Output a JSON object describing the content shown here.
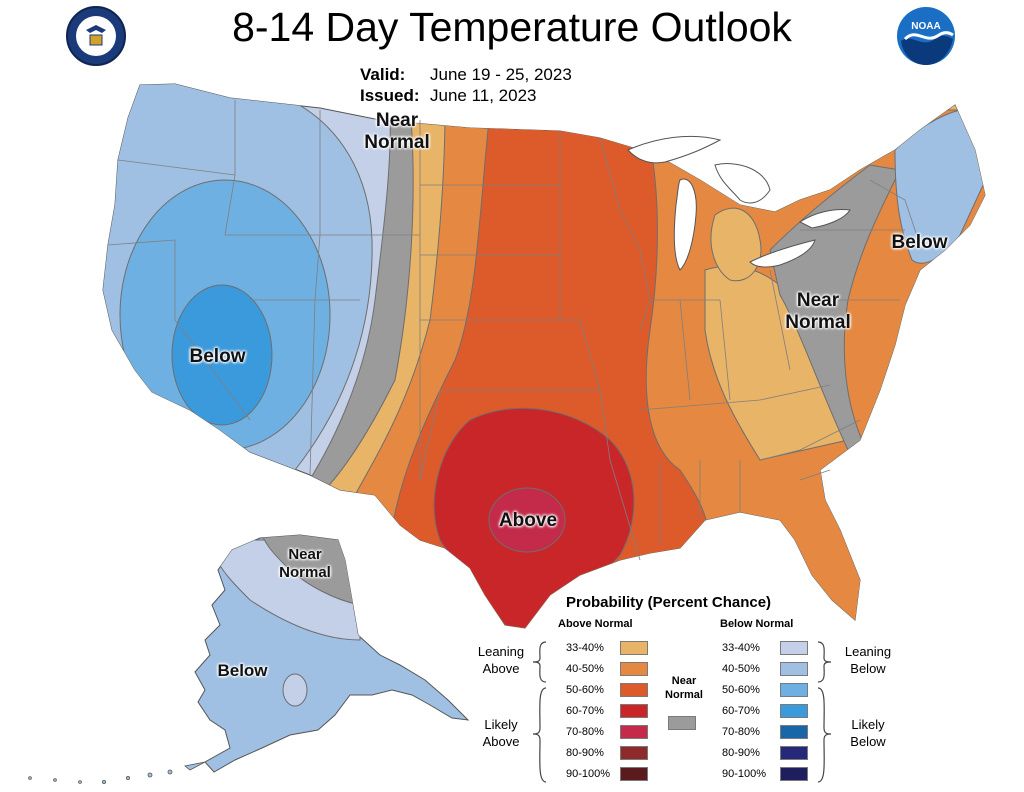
{
  "header": {
    "title": "8-14 Day Temperature Outlook",
    "valid_label": "Valid:",
    "valid_value": "June 19 - 25, 2023",
    "issued_label": "Issued:",
    "issued_value": "June 11, 2023"
  },
  "logos": {
    "left": "doc-seal-logo",
    "right": "noaa-logo",
    "right_text": "NOAA"
  },
  "map_labels": {
    "near_normal_north": [
      "Near",
      "Normal"
    ],
    "below_west": "Below",
    "below_northeast": "Below",
    "near_normal_east": [
      "Near",
      "Normal"
    ],
    "above_south": "Above",
    "near_normal_alaska": [
      "Near",
      "Normal"
    ],
    "below_alaska": "Below"
  },
  "legend": {
    "title": "Probability (Percent Chance)",
    "above_header": "Above Normal",
    "below_header": "Below Normal",
    "near_header": [
      "Near",
      "Normal"
    ],
    "leaning_above": [
      "Leaning",
      "Above"
    ],
    "likely_above": [
      "Likely",
      "Above"
    ],
    "leaning_below": [
      "Leaning",
      "Below"
    ],
    "likely_below": [
      "Likely",
      "Below"
    ],
    "above_items": [
      {
        "label": "33-40%",
        "color": "#e8b468"
      },
      {
        "label": "40-50%",
        "color": "#e58942"
      },
      {
        "label": "50-60%",
        "color": "#dd5a2b"
      },
      {
        "label": "60-70%",
        "color": "#c9262a"
      },
      {
        "label": "70-80%",
        "color": "#c42b4a"
      },
      {
        "label": "80-90%",
        "color": "#8e2a2c"
      },
      {
        "label": "90-100%",
        "color": "#5b1a1d"
      }
    ],
    "below_items": [
      {
        "label": "33-40%",
        "color": "#c3d0e8"
      },
      {
        "label": "40-50%",
        "color": "#9fc0e3"
      },
      {
        "label": "50-60%",
        "color": "#6fb0e2"
      },
      {
        "label": "60-70%",
        "color": "#3b9adc"
      },
      {
        "label": "70-80%",
        "color": "#1666a8"
      },
      {
        "label": "80-90%",
        "color": "#262879"
      },
      {
        "label": "90-100%",
        "color": "#1e1e5e"
      }
    ],
    "near_color": "#9b9b9b"
  },
  "colors": {
    "ocean": "#ffffff",
    "great_lakes": "#ffffff",
    "state_lines": "#7f7f7f",
    "contour": "#6e6e6e"
  }
}
